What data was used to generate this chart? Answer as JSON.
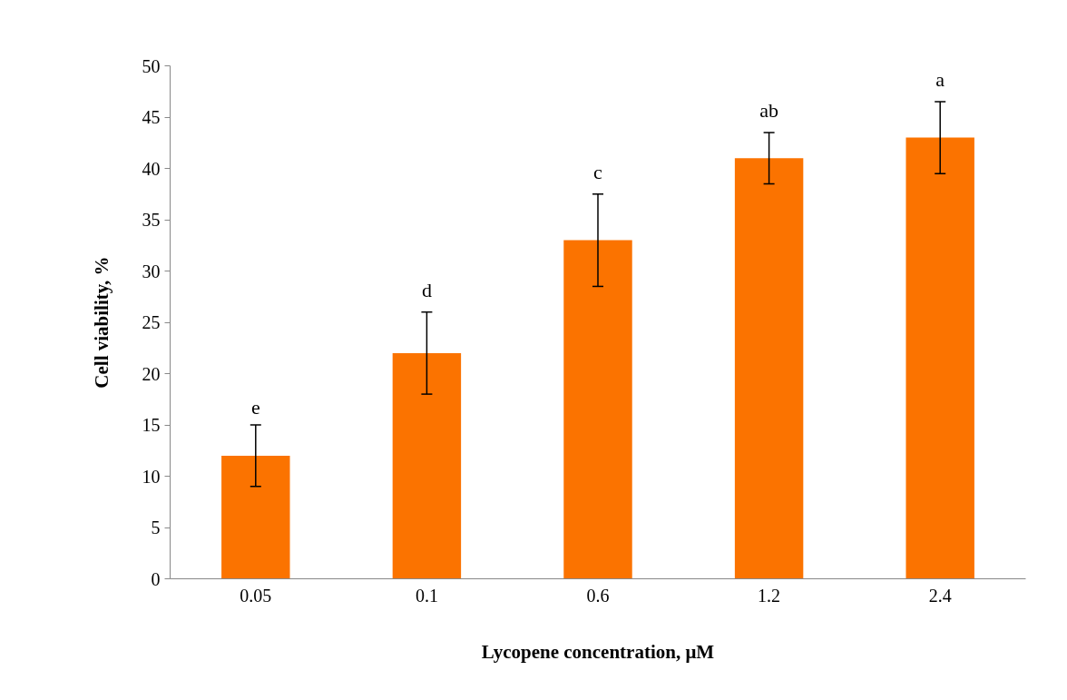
{
  "chart_data": {
    "type": "bar",
    "xlabel": "Lycopene concentration, μM",
    "ylabel": "Cell viability, %",
    "categories": [
      "0.05",
      "0.1",
      "0.6",
      "1.2",
      "2.4"
    ],
    "values": [
      12,
      22,
      33,
      41,
      43
    ],
    "errors": [
      3,
      4,
      4.5,
      2.5,
      3.5
    ],
    "color": "#fb7300",
    "ylim": [
      0,
      50
    ],
    "yticks": [
      0,
      5,
      10,
      15,
      20,
      25,
      30,
      35,
      40,
      45,
      50
    ],
    "grid": false,
    "annotations": [
      {
        "text": "e",
        "x": "0.05",
        "y": 15
      },
      {
        "text": "d",
        "x": "0.1",
        "y": 26
      },
      {
        "text": "c",
        "x": "0.6",
        "y": 37.5
      },
      {
        "text": "ab",
        "x": "1.2",
        "y": 43.5
      },
      {
        "text": "a",
        "x": "2.4",
        "y": 46.5
      }
    ]
  }
}
